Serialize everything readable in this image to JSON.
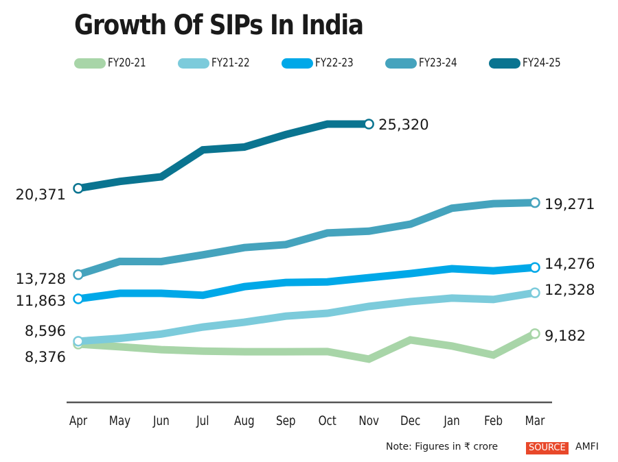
{
  "chart_data": {
    "type": "line",
    "title": "Growth Of SIPs In India",
    "xlabel": "",
    "ylabel": "",
    "categories": [
      "Apr",
      "May",
      "Jun",
      "Jul",
      "Aug",
      "Sep",
      "Oct",
      "Nov",
      "Dec",
      "Jan",
      "Feb",
      "Mar"
    ],
    "ylim": [
      6000,
      26500
    ],
    "grid": false,
    "legend_position": "top",
    "series": [
      {
        "name": "FY20-21",
        "color": "#a8d5a8",
        "values": [
          8376,
          8170,
          7950,
          7840,
          7790,
          7790,
          7800,
          7220,
          8700,
          8230,
          7530,
          9182
        ],
        "start_label": "8,376",
        "end_label": "9,182"
      },
      {
        "name": "FY21-22",
        "color": "#7ccbdb",
        "values": [
          8596,
          8820,
          9150,
          9690,
          10060,
          10530,
          10750,
          11280,
          11650,
          11920,
          11810,
          12328
        ],
        "start_label": "8,596",
        "end_label": "12,328"
      },
      {
        "name": "FY22-23",
        "color": "#00a8e8",
        "values": [
          11863,
          12290,
          12290,
          12140,
          12800,
          13120,
          13170,
          13490,
          13810,
          14180,
          14020,
          14276
        ],
        "start_label": "11,863",
        "end_label": "14,276"
      },
      {
        "name": "FY23-24",
        "color": "#45a3bd",
        "values": [
          13728,
          14740,
          14730,
          15250,
          15810,
          16040,
          16930,
          17070,
          17610,
          18840,
          19190,
          19271
        ],
        "start_label": "13,728",
        "end_label": "19,271"
      },
      {
        "name": "FY24-25",
        "color": "#0a7490",
        "values": [
          20371,
          20900,
          21260,
          23330,
          23550,
          24510,
          25320,
          25320,
          null,
          null,
          null,
          null
        ],
        "start_label": "20,371",
        "end_label": "25,320"
      }
    ]
  },
  "footer": {
    "note": "Note: Figures in ₹ crore",
    "source_badge": "SOURCE",
    "source_name": "AMFI"
  }
}
